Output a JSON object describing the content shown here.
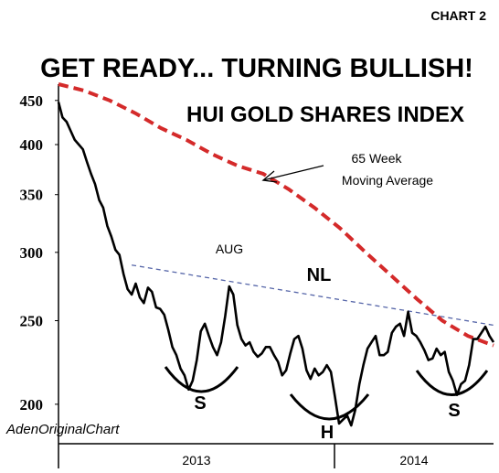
{
  "chart_data": {
    "type": "line",
    "chart_number": "CHART 2",
    "title": "GET READY... TURNING BULLISH!",
    "subtitle": "HUI GOLD SHARES INDEX",
    "watermark": "AdenOriginalChart",
    "y_scale": "log",
    "ylim": [
      180,
      470
    ],
    "y_ticks": [
      200,
      250,
      300,
      350,
      400,
      450
    ],
    "x_tick_labels": [
      "2013",
      "2014"
    ],
    "annotations": {
      "moving_average_label_line1": "65 Week",
      "moving_average_label_line2": "Moving Average",
      "aug": "AUG",
      "neckline": "NL",
      "left_shoulder": "S",
      "head": "H",
      "right_shoulder": "S"
    },
    "colors": {
      "price": "#000000",
      "moving_average": "#d42a2a",
      "neckline": "#5565a8"
    },
    "series": [
      {
        "values": [
          448,
          430,
          425,
          415,
          405,
          400,
          395,
          382,
          370,
          360,
          345,
          338,
          322,
          313,
          302,
          298,
          283,
          272,
          268,
          276,
          266,
          262,
          273,
          270,
          259,
          258,
          254,
          244,
          233,
          228,
          220,
          216,
          208,
          213,
          225,
          243,
          248,
          240,
          233,
          228,
          236,
          253,
          274,
          268,
          247,
          238,
          234,
          236,
          230,
          227,
          229,
          233,
          233,
          228,
          224,
          216,
          219,
          229,
          238,
          240,
          232,
          219,
          214,
          220,
          216,
          218,
          222,
          218,
          204,
          190,
          192,
          194,
          189,
          197,
          211,
          222,
          232,
          236,
          240,
          228,
          228,
          230,
          242,
          246,
          248,
          240,
          256,
          242,
          240,
          236,
          231,
          225,
          226,
          232,
          228,
          230,
          218,
          213,
          205,
          211,
          213,
          222,
          238,
          238,
          242,
          246,
          240,
          236
        ]
      },
      {
        "values": [
          470,
          462,
          450,
          435,
          418,
          405,
          390,
          378,
          370,
          355,
          338,
          320,
          300,
          282,
          265,
          250,
          240,
          234
        ]
      }
    ],
    "neckline": [
      290,
      247
    ]
  }
}
